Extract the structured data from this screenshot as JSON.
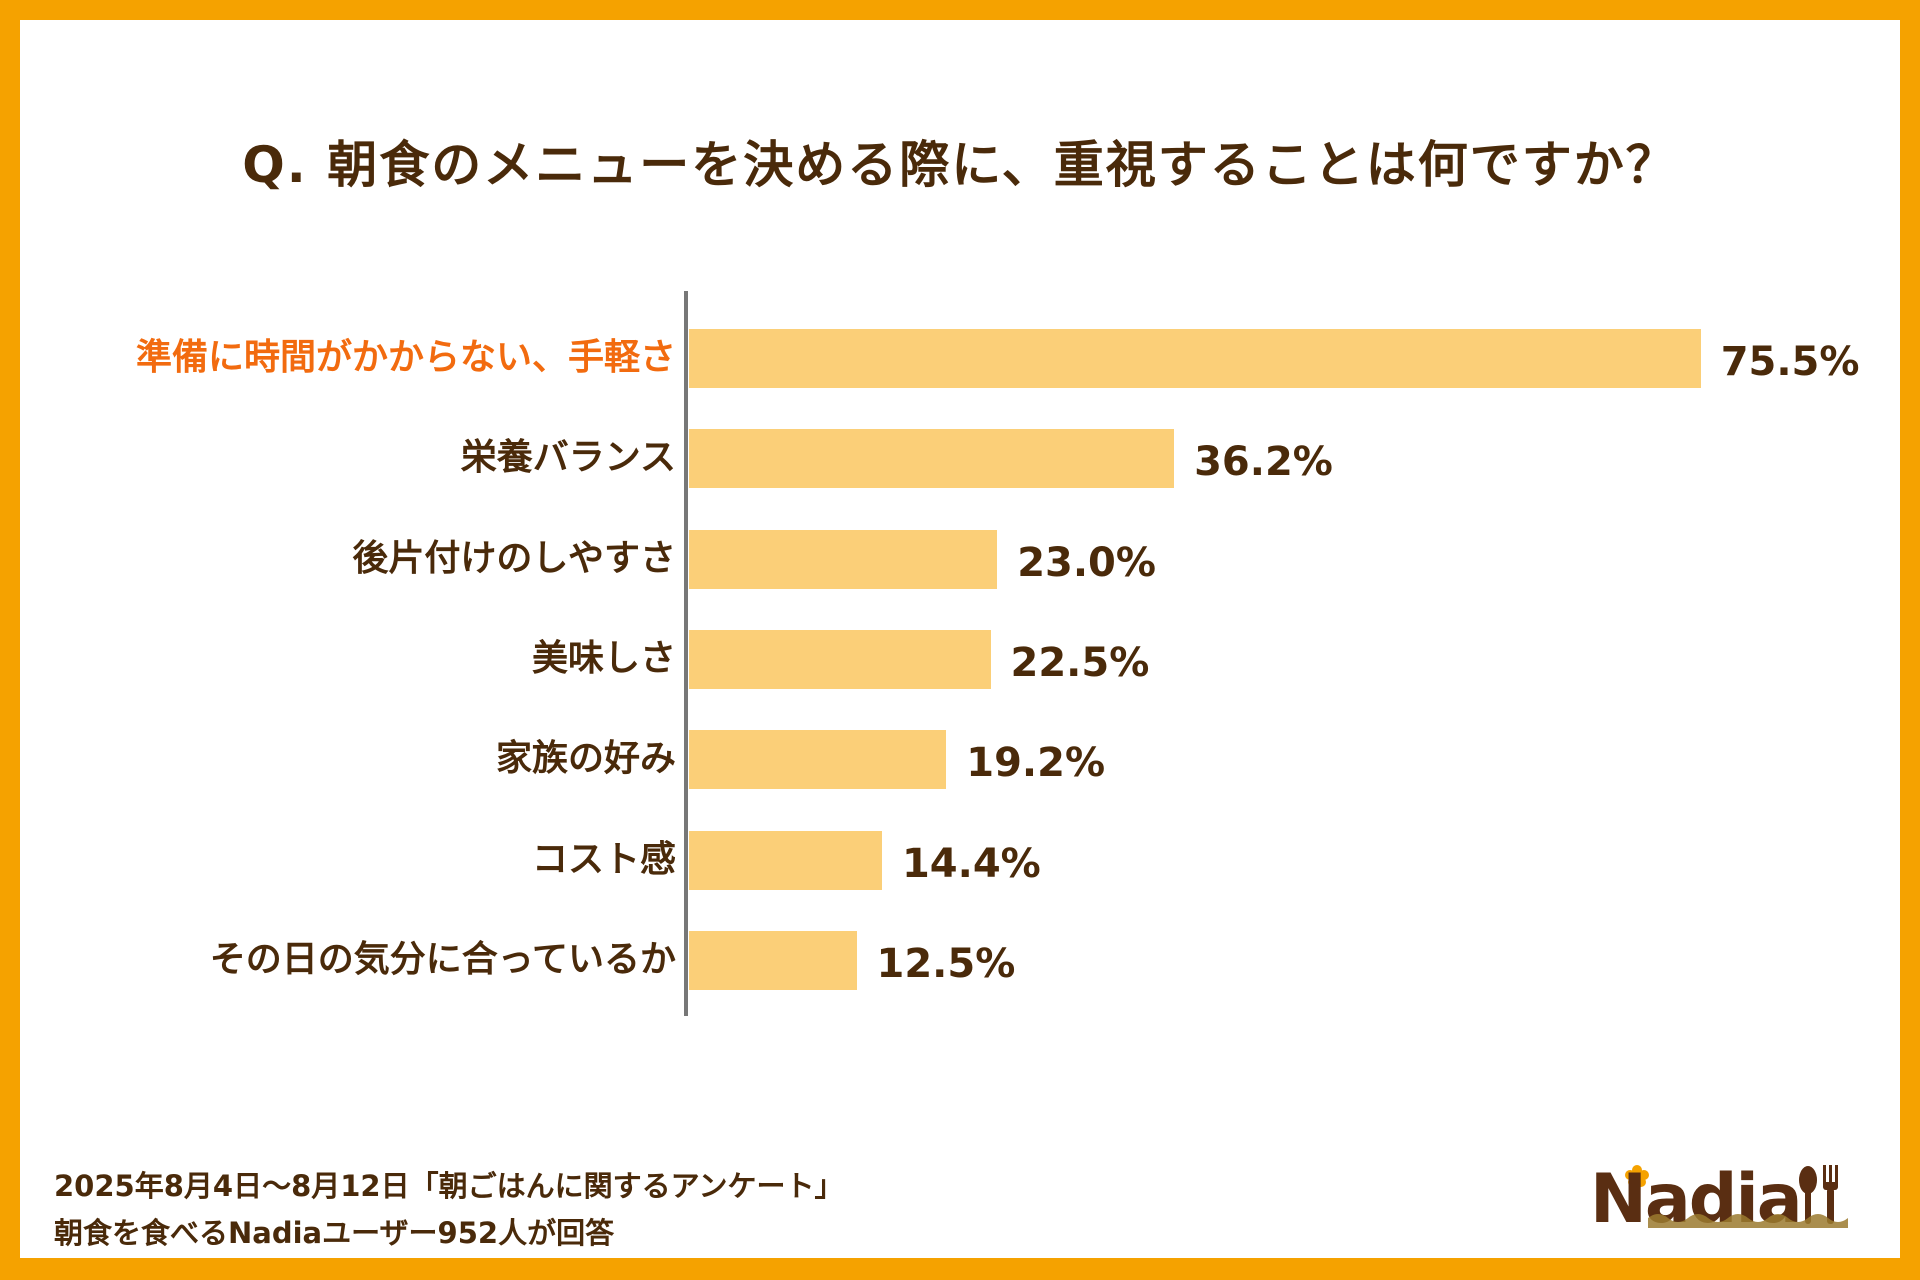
{
  "chart_data": {
    "type": "bar",
    "orientation": "horizontal",
    "title": "Q. 朝食のメニューを決める際に、重視することは何ですか？",
    "categories": [
      "準備に時間がかからない、手軽さ",
      "栄養バランス",
      "後片付けのしやすさ",
      "美味しさ",
      "家族の好み",
      "コスト感",
      "その日の気分に合っているか"
    ],
    "values": [
      75.5,
      36.2,
      23.0,
      22.5,
      19.2,
      14.4,
      12.5
    ],
    "value_labels": [
      "75.5%",
      "36.2%",
      "23.0%",
      "22.5%",
      "19.2%",
      "14.4%",
      "12.5%"
    ],
    "highlight_index": 0,
    "xlabel": "",
    "ylabel": "",
    "xlim": [
      0,
      76
    ],
    "grid": false
  },
  "colors": {
    "bar": "#FBCF78",
    "text": "#4A2A0A",
    "highlight": "#F26B0F",
    "frame": "#F5A200"
  },
  "footer": {
    "line1": "2025年8月4日～8月12日「朝ごはんに関するアンケート」",
    "line2": "朝食を食べるNadiaユーザー952人が回答"
  },
  "logo": {
    "text": "Nadia"
  }
}
